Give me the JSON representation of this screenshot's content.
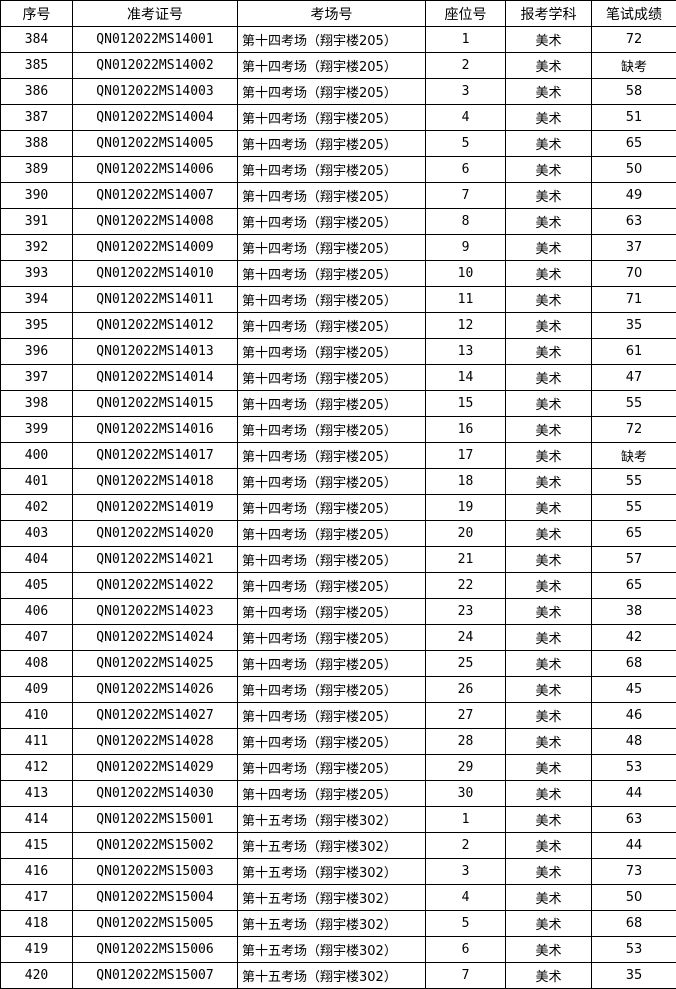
{
  "table": {
    "headers": [
      "序号",
      "准考证号",
      "考场号",
      "座位号",
      "报考学科",
      "笔试成绩"
    ],
    "rows": [
      [
        "384",
        "QN012022MS14001",
        "第十四考场（翔宇楼205）",
        "1",
        "美术",
        "72"
      ],
      [
        "385",
        "QN012022MS14002",
        "第十四考场（翔宇楼205）",
        "2",
        "美术",
        "缺考"
      ],
      [
        "386",
        "QN012022MS14003",
        "第十四考场（翔宇楼205）",
        "3",
        "美术",
        "58"
      ],
      [
        "387",
        "QN012022MS14004",
        "第十四考场（翔宇楼205）",
        "4",
        "美术",
        "51"
      ],
      [
        "388",
        "QN012022MS14005",
        "第十四考场（翔宇楼205）",
        "5",
        "美术",
        "65"
      ],
      [
        "389",
        "QN012022MS14006",
        "第十四考场（翔宇楼205）",
        "6",
        "美术",
        "50"
      ],
      [
        "390",
        "QN012022MS14007",
        "第十四考场（翔宇楼205）",
        "7",
        "美术",
        "49"
      ],
      [
        "391",
        "QN012022MS14008",
        "第十四考场（翔宇楼205）",
        "8",
        "美术",
        "63"
      ],
      [
        "392",
        "QN012022MS14009",
        "第十四考场（翔宇楼205）",
        "9",
        "美术",
        "37"
      ],
      [
        "393",
        "QN012022MS14010",
        "第十四考场（翔宇楼205）",
        "10",
        "美术",
        "70"
      ],
      [
        "394",
        "QN012022MS14011",
        "第十四考场（翔宇楼205）",
        "11",
        "美术",
        "71"
      ],
      [
        "395",
        "QN012022MS14012",
        "第十四考场（翔宇楼205）",
        "12",
        "美术",
        "35"
      ],
      [
        "396",
        "QN012022MS14013",
        "第十四考场（翔宇楼205）",
        "13",
        "美术",
        "61"
      ],
      [
        "397",
        "QN012022MS14014",
        "第十四考场（翔宇楼205）",
        "14",
        "美术",
        "47"
      ],
      [
        "398",
        "QN012022MS14015",
        "第十四考场（翔宇楼205）",
        "15",
        "美术",
        "55"
      ],
      [
        "399",
        "QN012022MS14016",
        "第十四考场（翔宇楼205）",
        "16",
        "美术",
        "72"
      ],
      [
        "400",
        "QN012022MS14017",
        "第十四考场（翔宇楼205）",
        "17",
        "美术",
        "缺考"
      ],
      [
        "401",
        "QN012022MS14018",
        "第十四考场（翔宇楼205）",
        "18",
        "美术",
        "55"
      ],
      [
        "402",
        "QN012022MS14019",
        "第十四考场（翔宇楼205）",
        "19",
        "美术",
        "55"
      ],
      [
        "403",
        "QN012022MS14020",
        "第十四考场（翔宇楼205）",
        "20",
        "美术",
        "65"
      ],
      [
        "404",
        "QN012022MS14021",
        "第十四考场（翔宇楼205）",
        "21",
        "美术",
        "57"
      ],
      [
        "405",
        "QN012022MS14022",
        "第十四考场（翔宇楼205）",
        "22",
        "美术",
        "65"
      ],
      [
        "406",
        "QN012022MS14023",
        "第十四考场（翔宇楼205）",
        "23",
        "美术",
        "38"
      ],
      [
        "407",
        "QN012022MS14024",
        "第十四考场（翔宇楼205）",
        "24",
        "美术",
        "42"
      ],
      [
        "408",
        "QN012022MS14025",
        "第十四考场（翔宇楼205）",
        "25",
        "美术",
        "68"
      ],
      [
        "409",
        "QN012022MS14026",
        "第十四考场（翔宇楼205）",
        "26",
        "美术",
        "45"
      ],
      [
        "410",
        "QN012022MS14027",
        "第十四考场（翔宇楼205）",
        "27",
        "美术",
        "46"
      ],
      [
        "411",
        "QN012022MS14028",
        "第十四考场（翔宇楼205）",
        "28",
        "美术",
        "48"
      ],
      [
        "412",
        "QN012022MS14029",
        "第十四考场（翔宇楼205）",
        "29",
        "美术",
        "53"
      ],
      [
        "413",
        "QN012022MS14030",
        "第十四考场（翔宇楼205）",
        "30",
        "美术",
        "44"
      ],
      [
        "414",
        "QN012022MS15001",
        "第十五考场（翔宇楼302）",
        "1",
        "美术",
        "63"
      ],
      [
        "415",
        "QN012022MS15002",
        "第十五考场（翔宇楼302）",
        "2",
        "美术",
        "44"
      ],
      [
        "416",
        "QN012022MS15003",
        "第十五考场（翔宇楼302）",
        "3",
        "美术",
        "73"
      ],
      [
        "417",
        "QN012022MS15004",
        "第十五考场（翔宇楼302）",
        "4",
        "美术",
        "50"
      ],
      [
        "418",
        "QN012022MS15005",
        "第十五考场（翔宇楼302）",
        "5",
        "美术",
        "68"
      ],
      [
        "419",
        "QN012022MS15006",
        "第十五考场（翔宇楼302）",
        "6",
        "美术",
        "53"
      ],
      [
        "420",
        "QN012022MS15007",
        "第十五考场（翔宇楼302）",
        "7",
        "美术",
        "35"
      ]
    ]
  }
}
